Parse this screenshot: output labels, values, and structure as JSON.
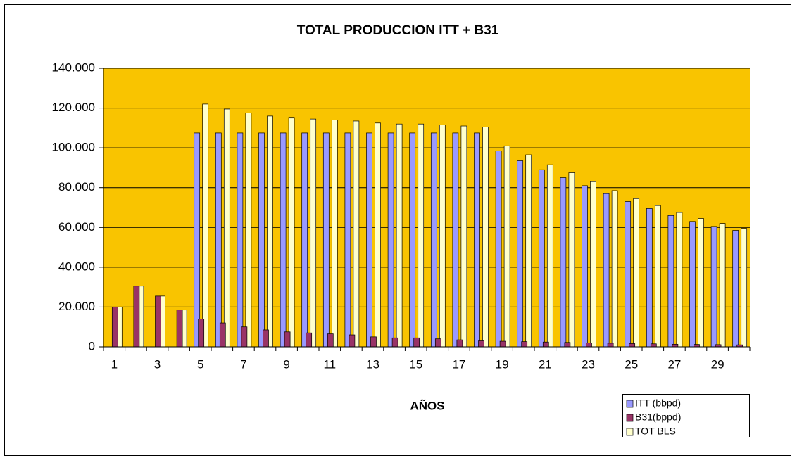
{
  "chart_data": {
    "type": "bar",
    "title": "TOTAL PRODUCCION ITT + B31",
    "x_label": "AÑOS",
    "categories": [
      "1",
      null,
      "3",
      null,
      "5",
      null,
      "7",
      null,
      "9",
      null,
      "11",
      null,
      "13",
      null,
      "15",
      null,
      "17",
      null,
      "19",
      null,
      "21",
      null,
      "23",
      null,
      "25",
      null,
      "27",
      null,
      "29",
      null
    ],
    "series": [
      {
        "name": "ITT (bbpd)",
        "color": "#9999ff",
        "values": [
          0,
          0,
          0,
          0,
          107500,
          107500,
          107500,
          107500,
          107500,
          107500,
          107500,
          107500,
          107500,
          107500,
          107500,
          107500,
          107500,
          107500,
          98500,
          93500,
          89000,
          85000,
          81000,
          77000,
          73000,
          69500,
          66000,
          63000,
          60500,
          58500
        ]
      },
      {
        "name": "B31(bppd)",
        "color": "#993366",
        "values": [
          20000,
          30500,
          25500,
          18500,
          14000,
          12000,
          10000,
          8500,
          7500,
          7000,
          6500,
          6000,
          5000,
          4500,
          4500,
          4000,
          3500,
          3000,
          2800,
          2600,
          2400,
          2200,
          2000,
          1800,
          1600,
          1500,
          1300,
          1200,
          1100,
          1000
        ]
      },
      {
        "name": "TOT BLS",
        "color": "#ffffcc",
        "values": [
          20000,
          30500,
          25500,
          18500,
          122000,
          119500,
          117500,
          116000,
          115000,
          114500,
          114000,
          113500,
          112500,
          112000,
          112000,
          111500,
          111000,
          110500,
          101000,
          96500,
          91500,
          87500,
          83000,
          78500,
          74500,
          71000,
          67500,
          64500,
          62000,
          59500
        ]
      }
    ],
    "ylim": [
      0,
      140000
    ],
    "yticks": [
      0,
      {
        "value": 20000,
        "label": "20.000"
      },
      {
        "value": 40000,
        "label": "40.000"
      },
      {
        "value": 60000,
        "label": "60.000"
      },
      {
        "value": 80000,
        "label": "80.000"
      },
      {
        "value": 100000,
        "label": "100.000"
      },
      {
        "value": 120000,
        "label": "120.000"
      },
      {
        "value": 140000,
        "label": "140.000"
      }
    ],
    "grid": true,
    "plot_background": "#f9c400",
    "legend": "bottom-right"
  }
}
